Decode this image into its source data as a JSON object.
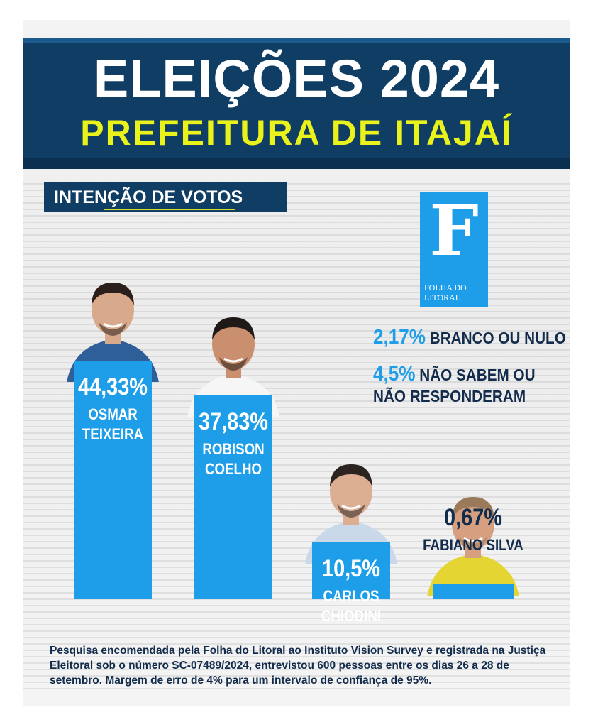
{
  "header": {
    "title": "ELEIÇÕES 2024",
    "subtitle": "PREFEITURA DE ITAJAÍ"
  },
  "section_label": "INTENÇÃO DE VOTOS",
  "logo": {
    "letter": "F",
    "name": "FOLHA DO LITORAL"
  },
  "stats": [
    {
      "value": "2,17%",
      "label": "BRANCO OU NULO"
    },
    {
      "value": "4,5%",
      "label_line1": "NÃO SABEM OU",
      "label_line2": "NÃO RESPONDERAM"
    }
  ],
  "chart_data": {
    "type": "bar",
    "categories": [
      "OSMAR TEIXEIRA",
      "ROBISON COELHO",
      "CARLOS CHIODINI",
      "FABIANO SILVA"
    ],
    "values": [
      44.33,
      37.83,
      10.5,
      0.67
    ],
    "value_labels": [
      "44,33%",
      "37,83%",
      "10,5%",
      "0,67%"
    ],
    "name_lines": [
      [
        "OSMAR",
        "TEIXEIRA"
      ],
      [
        "ROBISON",
        "COELHO"
      ],
      [
        "CARLOS",
        "CHIODINI"
      ],
      [
        "FABIANO SILVA"
      ]
    ],
    "bar_color": "#1e9ee9"
  },
  "footer": "Pesquisa encomendada pela Folha do Litoral ao Instituto Vision Survey e registrada na Justiça Eleitoral sob o número SC-07489/2024, entrevistou 600 pessoas entre os dias 26 a 28 de setembro.  Margem de erro de 4% para um intervalo de confiança de 95%.",
  "colors": {
    "navy": "#0f3d63",
    "accent_yellow": "#e9f21b",
    "bar_blue": "#1e9ee9",
    "text_dark": "#132c4c"
  }
}
